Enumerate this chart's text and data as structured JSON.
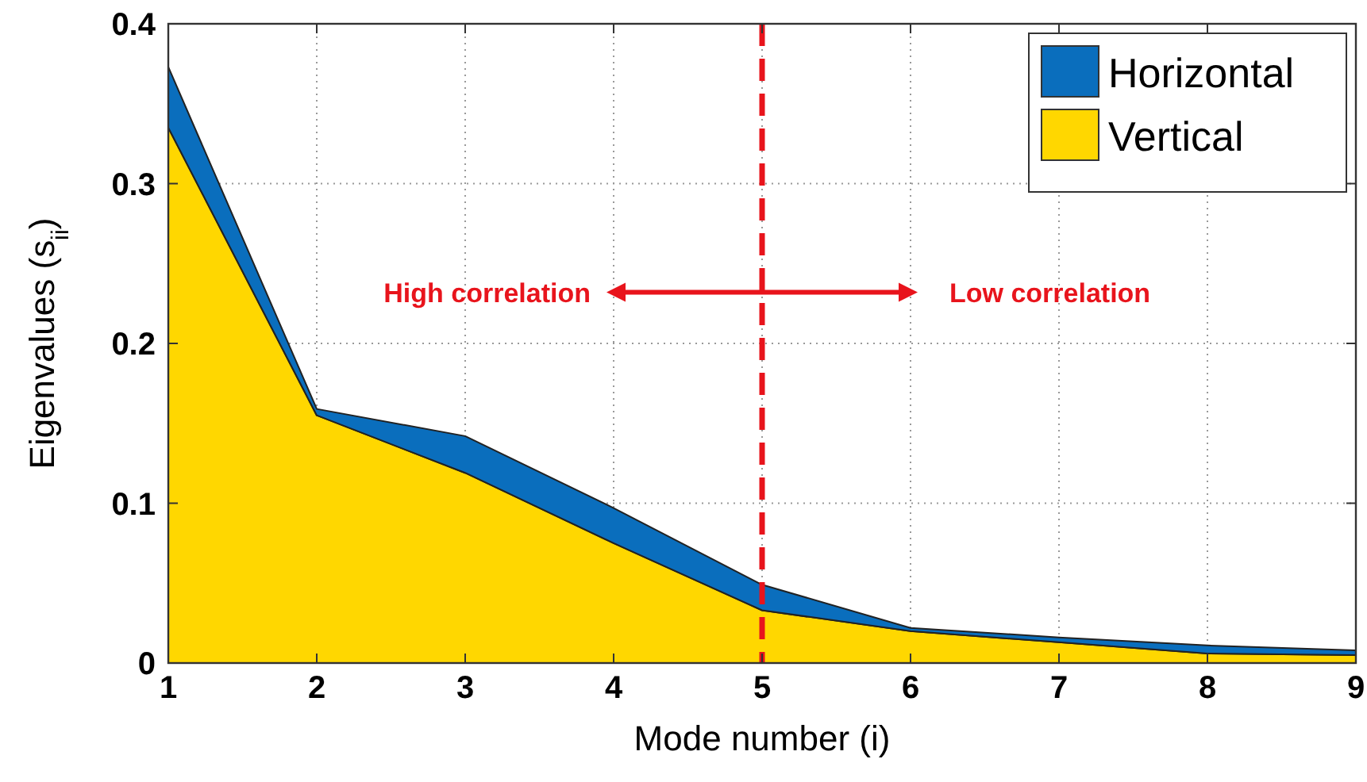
{
  "chart_data": {
    "type": "area",
    "stacked": true,
    "xlabel": "Mode number (i)",
    "ylabel": "Eigenvalues (s$_{ii}$)",
    "x": [
      1,
      2,
      3,
      4,
      5,
      6,
      7,
      8,
      9
    ],
    "series": [
      {
        "name": "Vertical",
        "color": "#ffd700",
        "values": [
          0.335,
          0.155,
          0.119,
          0.075,
          0.033,
          0.02,
          0.013,
          0.006,
          0.005
        ]
      },
      {
        "name": "Horizontal",
        "color": "#0a6ebd",
        "values": [
          0.038,
          0.004,
          0.023,
          0.022,
          0.016,
          0.002,
          0.003,
          0.005,
          0.003
        ]
      }
    ],
    "xlim": [
      1,
      9
    ],
    "xticks": [
      1,
      2,
      3,
      4,
      5,
      6,
      7,
      8,
      9
    ],
    "ylim": [
      0,
      0.4
    ],
    "yticks": [
      0,
      0.1,
      0.2,
      0.3,
      0.4
    ],
    "grid": true,
    "legend": "top right",
    "ref_lines": [
      {
        "axis": "x",
        "value": 5,
        "color": "#e8141c",
        "line_style": "dashed"
      }
    ],
    "annotations": [
      "High correlation",
      "Low correlation"
    ]
  }
}
